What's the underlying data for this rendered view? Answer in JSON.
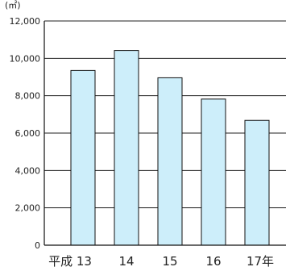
{
  "chart_data": {
    "type": "bar",
    "categories": [
      "平成 13",
      "14",
      "15",
      "16",
      "17年"
    ],
    "values": [
      9350,
      10420,
      8960,
      7820,
      6680
    ],
    "unit_label": "(㎡)",
    "yticks": [
      "0",
      "2,000",
      "4,000",
      "6,000",
      "8,000",
      "10,000",
      "12,000"
    ],
    "ylim": [
      0,
      12000
    ],
    "grid": true,
    "bar_color": "#cdeefa",
    "bar_stroke": "#111111",
    "title": "",
    "xlabel": "",
    "ylabel": ""
  }
}
